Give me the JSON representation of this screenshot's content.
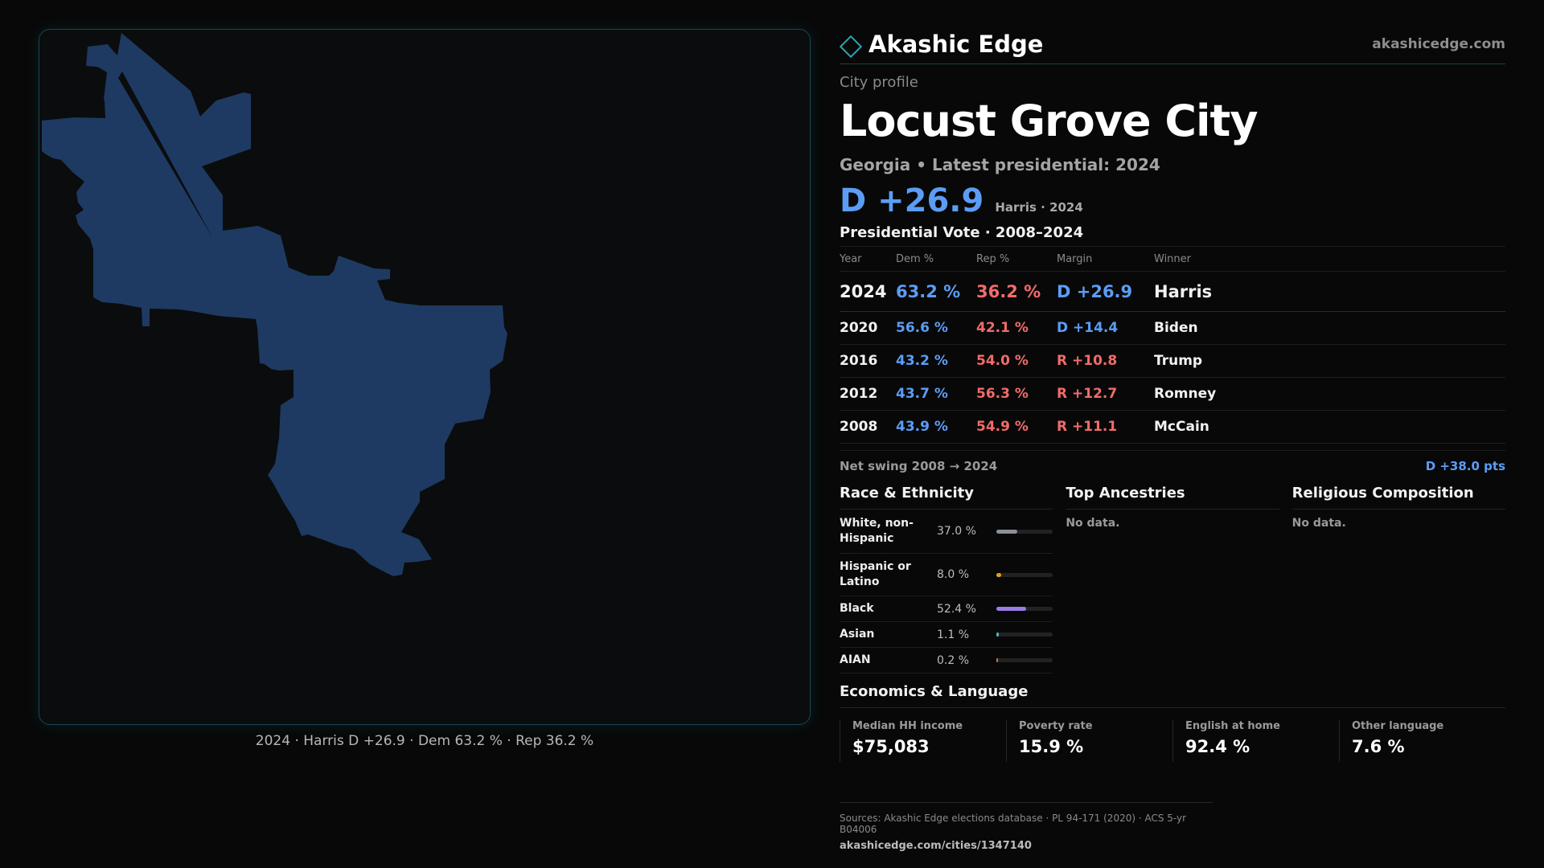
{
  "brand": {
    "name": "Akashic Edge",
    "url": "akashicedge.com"
  },
  "map": {
    "fill_color": "#1e3a62",
    "caption": "2024 · Harris D +26.9 · Dem 63.2 % · Rep 36.2 %"
  },
  "profile": {
    "eyebrow": "City profile",
    "city": "Locust Grove City",
    "subtitle": "Georgia • Latest presidential: 2024",
    "margin": "D +26.9",
    "margin_sub": "Harris · 2024"
  },
  "votes": {
    "heading": "Presidential Vote · 2008–2024",
    "columns": [
      "Year",
      "Dem %",
      "Rep %",
      "Margin",
      "Winner"
    ],
    "rows": [
      {
        "year": "2024",
        "dem": "63.2 %",
        "rep": "36.2 %",
        "margin": "D +26.9",
        "party": "dem",
        "winner": "Harris"
      },
      {
        "year": "2020",
        "dem": "56.6 %",
        "rep": "42.1 %",
        "margin": "D +14.4",
        "party": "dem",
        "winner": "Biden"
      },
      {
        "year": "2016",
        "dem": "43.2 %",
        "rep": "54.0 %",
        "margin": "R +10.8",
        "party": "rep",
        "winner": "Trump"
      },
      {
        "year": "2012",
        "dem": "43.7 %",
        "rep": "56.3 %",
        "margin": "R +12.7",
        "party": "rep",
        "winner": "Romney"
      },
      {
        "year": "2008",
        "dem": "43.9 %",
        "rep": "54.9 %",
        "margin": "R +11.1",
        "party": "rep",
        "winner": "McCain"
      }
    ],
    "swing_label": "Net swing 2008 → 2024",
    "swing_value": "D +38.0 pts"
  },
  "race": {
    "heading": "Race & Ethnicity",
    "rows": [
      {
        "name": "White, non-Hispanic",
        "pct": "37.0 %",
        "value": 37.0,
        "color": "#8a8f99"
      },
      {
        "name": "Hispanic or Latino",
        "pct": "8.0 %",
        "value": 8.0,
        "color": "#e5a21e"
      },
      {
        "name": "Black",
        "pct": "52.4 %",
        "value": 52.4,
        "color": "#9b7be6"
      },
      {
        "name": "Asian",
        "pct": "1.1 %",
        "value": 1.1,
        "color": "#4bb3c8"
      },
      {
        "name": "AIAN",
        "pct": "0.2 %",
        "value": 0.2,
        "color": "#c87a4b"
      }
    ]
  },
  "ancestries": {
    "heading": "Top Ancestries",
    "empty": "No data."
  },
  "religion": {
    "heading": "Religious Composition",
    "empty": "No data."
  },
  "economics": {
    "heading": "Economics & Language",
    "cells": [
      {
        "label": "Median HH income",
        "value": "$75,083"
      },
      {
        "label": "Poverty rate",
        "value": "15.9 %"
      },
      {
        "label": "English at home",
        "value": "92.4 %"
      },
      {
        "label": "Other language",
        "value": "7.6 %"
      }
    ]
  },
  "sources": {
    "line": "Sources: Akashic Edge elections database · PL 94-171 (2020) · ACS 5-yr B04006",
    "url": "akashicedge.com/cities/1347140"
  }
}
